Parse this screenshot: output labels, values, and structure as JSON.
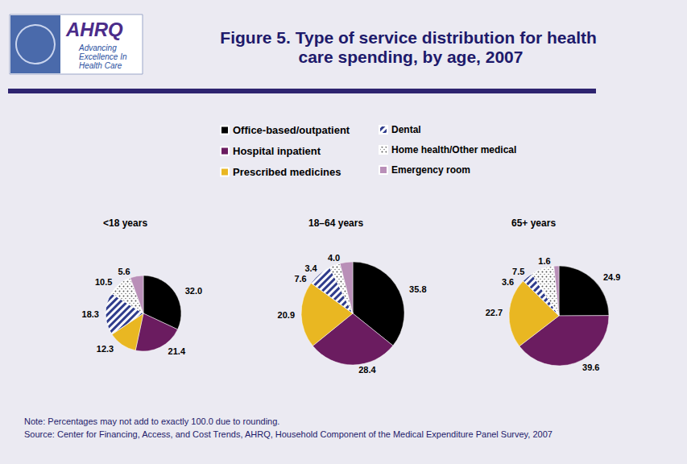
{
  "title": "Figure 5. Type of service distribution for health care spending, by age, 2007",
  "logo": {
    "name": "AHRQ",
    "tagline": "Advancing Excellence In Health Care"
  },
  "note": "Note: Percentages may not add to exactly 100.0 due to rounding.",
  "source": "Source: Center for Financing, Access, and Cost Trends, AHRQ, Household Component of the Medical Expenditure Panel Survey, 2007",
  "chart_data": [
    {
      "type": "pie",
      "title": "<18 years",
      "categories": [
        "Office-based/outpatient",
        "Hospital inpatient",
        "Prescribed medicines",
        "Dental",
        "Home health/Other medical",
        "Emergency room"
      ],
      "values": [
        32.0,
        21.4,
        12.3,
        18.3,
        10.5,
        5.6
      ],
      "value_labels": [
        "32.0",
        "21.4",
        "12.3",
        "18.3",
        "10.5",
        "5.6"
      ],
      "colors": [
        "#000000",
        "#6b1c60",
        "#e9b722",
        "#2f3c8c",
        "#ffffff",
        "#b98fb8"
      ],
      "data_labels": true
    },
    {
      "type": "pie",
      "title": "18–64 years",
      "categories": [
        "Office-based/outpatient",
        "Hospital inpatient",
        "Prescribed medicines",
        "Dental",
        "Home health/Other medical",
        "Emergency room"
      ],
      "values": [
        35.8,
        28.4,
        20.9,
        7.6,
        3.4,
        4.0
      ],
      "value_labels": [
        "35.8",
        "28.4",
        "20.9",
        "7.6",
        "3.4",
        "4.0"
      ],
      "colors": [
        "#000000",
        "#6b1c60",
        "#e9b722",
        "#2f3c8c",
        "#ffffff",
        "#b98fb8"
      ],
      "data_labels": true
    },
    {
      "type": "pie",
      "title": "65+ years",
      "categories": [
        "Office-based/outpatient",
        "Hospital inpatient",
        "Prescribed medicines",
        "Dental",
        "Home health/Other medical",
        "Emergency room"
      ],
      "values": [
        24.9,
        39.6,
        22.7,
        3.6,
        7.5,
        1.6
      ],
      "value_labels": [
        "24.9",
        "39.6",
        "22.7",
        "3.6",
        "7.5",
        "1.6"
      ],
      "colors": [
        "#000000",
        "#6b1c60",
        "#e9b722",
        "#2f3c8c",
        "#ffffff",
        "#b98fb8"
      ],
      "data_labels": true
    }
  ]
}
